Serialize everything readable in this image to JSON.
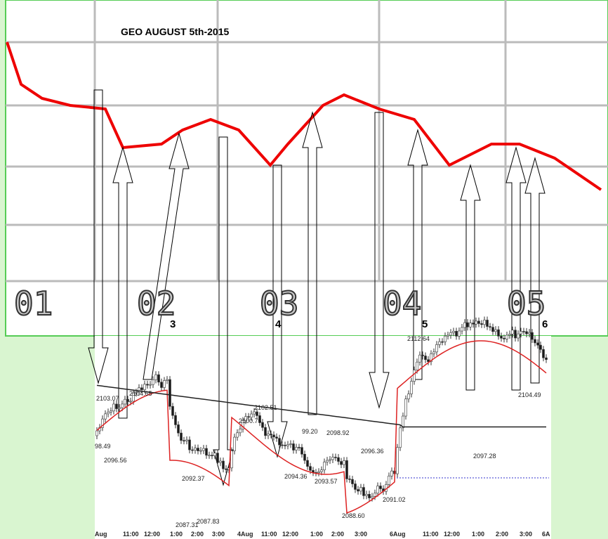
{
  "title": "GEO AUGUST 5th-2015",
  "top_panel": {
    "day_labels": [
      "01",
      "02",
      "03",
      "04",
      "05"
    ],
    "markers": [
      "3",
      "4",
      "5",
      "6"
    ]
  },
  "bottom_panel": {
    "price_labels": [
      "2103.07",
      "2104.65",
      "98.49",
      "2096.56",
      "2092.37",
      "2087.31",
      "2087.83",
      "2100.75",
      "2102.51",
      "99.20",
      "2098.92",
      "2094.36",
      "2093.57",
      "2096.36",
      "2088.60",
      "2091.02",
      "2112.64",
      "2097.28",
      "2104.49"
    ],
    "time_labels": [
      "Aug",
      "11:00",
      "12:00",
      "1:00",
      "2:00",
      "3:00",
      "4Aug",
      "11:00",
      "12:00",
      "1:00",
      "2:00",
      "3:00",
      "6Aug",
      "11:00",
      "12:00",
      "1:00",
      "2:00",
      "3:00",
      "6A"
    ]
  }
}
